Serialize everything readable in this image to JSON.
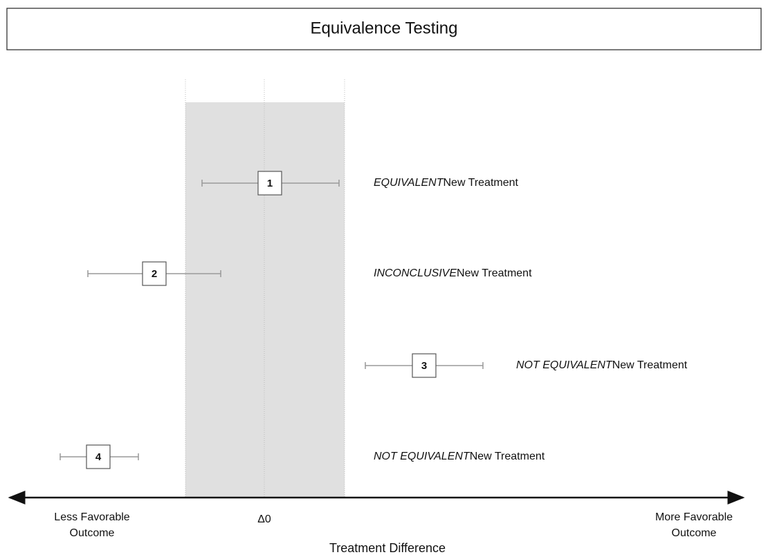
{
  "header": {
    "title": "Equivalence Testing"
  },
  "items": [
    {
      "number": "1",
      "verdict": "EQUIVALENT",
      "rest": "New Treatment"
    },
    {
      "number": "2",
      "verdict": "INCONCLUSIVE",
      "rest": "New Treatment"
    },
    {
      "number": "3",
      "verdict": "NOT EQUIVALENT",
      "rest": "New Treatment"
    },
    {
      "number": "4",
      "verdict": "NOT EQUIVALENT",
      "rest": "New Treatment"
    }
  ],
  "axis": {
    "left": [
      "Less Favorable",
      "Outcome"
    ],
    "center": "Δ0",
    "right": [
      "More Favorable",
      "Outcome"
    ],
    "title": "Treatment Difference"
  }
}
